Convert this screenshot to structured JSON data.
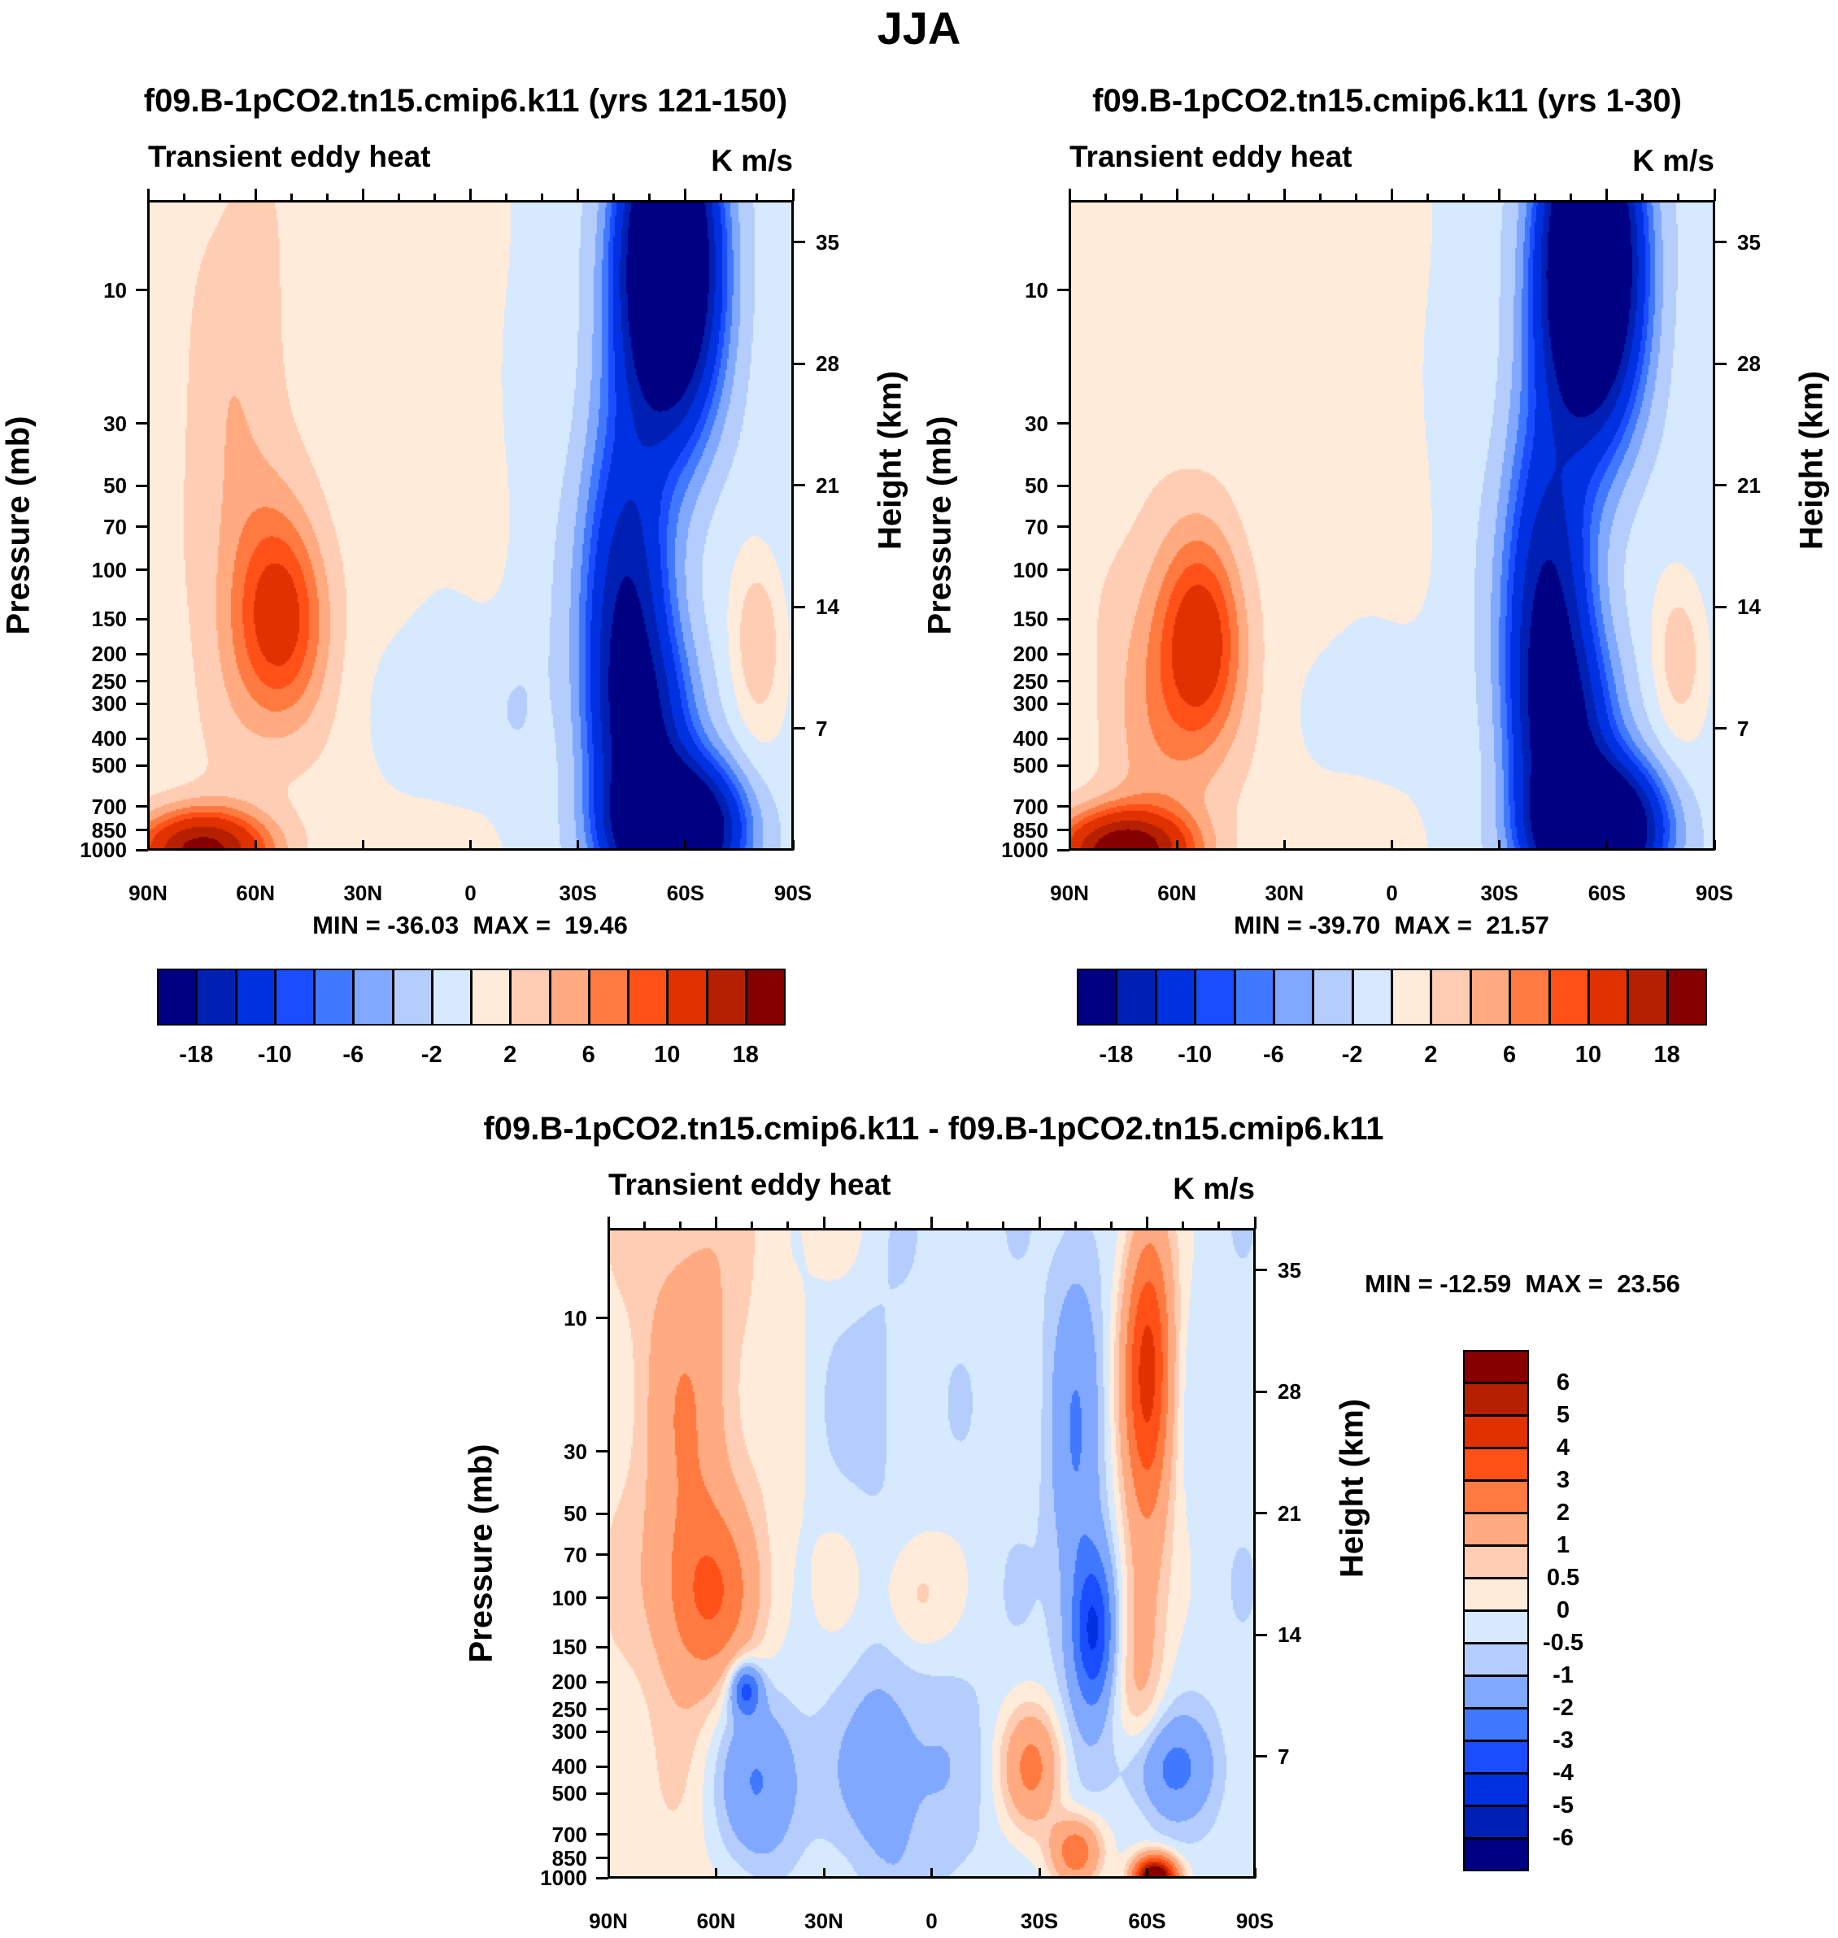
{
  "figure_title": "JJA",
  "chart_data": [
    {
      "type": "contour",
      "title": "f09.B-1pCO2.tn15.cmip6.k11 (yrs 121-150)",
      "left_string": "Transient eddy heat",
      "right_string": "K m/s",
      "ylabel": "Pressure (mb)",
      "ylabel_right": "Height (km)",
      "x_ticks": [
        "90N",
        "60N",
        "30N",
        "0",
        "30S",
        "60S",
        "90S"
      ],
      "x_range": [
        90,
        -90
      ],
      "y_ticks": [
        "10",
        "30",
        "50",
        "70",
        "100",
        "150",
        "200",
        "250",
        "300",
        "400",
        "500",
        "700",
        "850",
        "1000"
      ],
      "y_range_mb": [
        1000,
        4.8
      ],
      "y_scale": "log",
      "y_right_ticks": [
        "7",
        "14",
        "21",
        "28",
        "35"
      ],
      "stats": "MIN = -36.03  MAX =  19.46",
      "min": -36.03,
      "max": 19.46,
      "levels": [
        -18,
        -14,
        -10,
        -8,
        -6,
        -4,
        -2,
        0,
        2,
        4,
        6,
        8,
        10,
        14,
        18
      ],
      "colorbar_labels": [
        "-18",
        "-10",
        "-6",
        "-2",
        "2",
        "6",
        "10",
        "18"
      ],
      "colors": [
        "#000083",
        "#0020b4",
        "#0031e0",
        "#1a4dff",
        "#4078ff",
        "#80a8ff",
        "#b4cdfd",
        "#d7e9fe",
        "#ffebd9",
        "#ffcdb4",
        "#ffaa80",
        "#ff7a40",
        "#ff5018",
        "#e03200",
        "#b52000",
        "#870000"
      ],
      "background": {
        "amp": 1.0,
        "lat": -10
      },
      "features": [
        {
          "lat": -55,
          "p": 8,
          "amp": -38,
          "s_lat": 9,
          "s_lnp": 0.9
        },
        {
          "lat": -43,
          "p": 150,
          "amp": -17,
          "s_lat": 8,
          "s_lnp": 1.1
        },
        {
          "lat": -50,
          "p": 400,
          "amp": -12,
          "s_lat": 9,
          "s_lnp": 0.6
        },
        {
          "lat": -57,
          "p": 850,
          "amp": -36,
          "s_lat": 11,
          "s_lnp": 0.35
        },
        {
          "lat": 53,
          "p": 150,
          "amp": 10,
          "s_lat": 9,
          "s_lnp": 0.6
        },
        {
          "lat": 65,
          "p": 40,
          "amp": 3,
          "s_lat": 10,
          "s_lnp": 1.6
        },
        {
          "lat": 75,
          "p": 1000,
          "amp": 19,
          "s_lat": 12,
          "s_lnp": 0.22
        },
        {
          "lat": 5,
          "p": 300,
          "amp": -2.8,
          "s_lat": 16,
          "s_lnp": 0.6
        },
        {
          "lat": -80,
          "p": 180,
          "amp": 5,
          "s_lat": 5,
          "s_lnp": 0.5
        }
      ]
    },
    {
      "type": "contour",
      "title": "f09.B-1pCO2.tn15.cmip6.k11 (yrs 1-30)",
      "left_string": "Transient eddy heat",
      "right_string": "K m/s",
      "ylabel": "Pressure (mb)",
      "ylabel_right": "Height (km)",
      "x_ticks": [
        "90N",
        "60N",
        "30N",
        "0",
        "30S",
        "60S",
        "90S"
      ],
      "x_range": [
        90,
        -90
      ],
      "y_ticks": [
        "10",
        "30",
        "50",
        "70",
        "100",
        "150",
        "200",
        "250",
        "300",
        "400",
        "500",
        "700",
        "850",
        "1000"
      ],
      "y_range_mb": [
        1000,
        4.8
      ],
      "y_scale": "log",
      "y_right_ticks": [
        "7",
        "14",
        "21",
        "28",
        "35"
      ],
      "stats": "MIN = -39.70  MAX =  21.57",
      "min": -39.7,
      "max": 21.57,
      "levels": [
        -18,
        -14,
        -10,
        -8,
        -6,
        -4,
        -2,
        0,
        2,
        4,
        6,
        8,
        10,
        14,
        18
      ],
      "colorbar_labels": [
        "-18",
        "-10",
        "-6",
        "-2",
        "2",
        "6",
        "10",
        "18"
      ],
      "colors": [
        "#000083",
        "#0020b4",
        "#0031e0",
        "#1a4dff",
        "#4078ff",
        "#80a8ff",
        "#b4cdfd",
        "#d7e9fe",
        "#ffebd9",
        "#ffcdb4",
        "#ffaa80",
        "#ff7a40",
        "#ff5018",
        "#e03200",
        "#b52000",
        "#870000"
      ],
      "background": {
        "amp": 1.0,
        "lat": -10
      },
      "features": [
        {
          "lat": -55,
          "p": 8,
          "amp": -40,
          "s_lat": 9,
          "s_lnp": 0.9
        },
        {
          "lat": -43,
          "p": 150,
          "amp": -18,
          "s_lat": 8,
          "s_lnp": 1.1
        },
        {
          "lat": -50,
          "p": 400,
          "amp": -13,
          "s_lat": 9,
          "s_lnp": 0.6
        },
        {
          "lat": -57,
          "p": 850,
          "amp": -38,
          "s_lat": 11,
          "s_lnp": 0.35
        },
        {
          "lat": 53,
          "p": 180,
          "amp": 10,
          "s_lat": 8,
          "s_lnp": 0.6
        },
        {
          "lat": 65,
          "p": 300,
          "amp": 4,
          "s_lat": 11,
          "s_lnp": 1.0
        },
        {
          "lat": 75,
          "p": 1000,
          "amp": 21,
          "s_lat": 12,
          "s_lnp": 0.22
        },
        {
          "lat": 5,
          "p": 300,
          "amp": -2.5,
          "s_lat": 14,
          "s_lnp": 0.5
        },
        {
          "lat": -80,
          "p": 200,
          "amp": 4.5,
          "s_lat": 5,
          "s_lnp": 0.45
        }
      ]
    },
    {
      "type": "contour",
      "title": "f09.B-1pCO2.tn15.cmip6.k11 - f09.B-1pCO2.tn15.cmip6.k11",
      "left_string": "Transient eddy heat",
      "right_string": "K m/s",
      "ylabel": "Pressure (mb)",
      "ylabel_right": "Height (km)",
      "x_ticks": [
        "90N",
        "60N",
        "30N",
        "0",
        "30S",
        "60S",
        "90S"
      ],
      "x_range": [
        90,
        -90
      ],
      "y_ticks": [
        "10",
        "30",
        "50",
        "70",
        "100",
        "150",
        "200",
        "250",
        "300",
        "400",
        "500",
        "700",
        "850",
        "1000"
      ],
      "y_range_mb": [
        1000,
        4.8
      ],
      "y_scale": "log",
      "y_right_ticks": [
        "7",
        "14",
        "21",
        "28",
        "35"
      ],
      "stats": "MIN = -12.59  MAX =  23.56",
      "min": -12.59,
      "max": 23.56,
      "levels": [
        -6,
        -5,
        -4,
        -3,
        -2,
        -1,
        -0.5,
        0,
        0.5,
        1,
        2,
        3,
        4,
        5,
        6
      ],
      "colorbar_labels": [
        "-6",
        "-5",
        "-4",
        "-3",
        "-2",
        "-1",
        "-0.5",
        "0",
        "0.5",
        "1",
        "2",
        "3",
        "4",
        "5",
        "6"
      ],
      "colors": [
        "#000083",
        "#0020b4",
        "#0031e0",
        "#1a4dff",
        "#4078ff",
        "#80a8ff",
        "#b4cdfd",
        "#d7e9fe",
        "#ffebd9",
        "#ffcdb4",
        "#ffaa80",
        "#ff7a40",
        "#ff5018",
        "#e03200",
        "#b52000",
        "#870000"
      ],
      "background": {
        "amp": 0.3,
        "lat": 20
      },
      "features": [
        {
          "lat": 68,
          "p": 25,
          "amp": 1.6,
          "s_lat": 9,
          "s_lnp": 1.3
        },
        {
          "lat": 62,
          "p": 100,
          "amp": 2.2,
          "s_lat": 9,
          "s_lnp": 0.5
        },
        {
          "lat": 5,
          "p": 100,
          "amp": 1.2,
          "s_lat": 7,
          "s_lnp": 0.4
        },
        {
          "lat": -60,
          "p": 15,
          "amp": 4.6,
          "s_lat": 5,
          "s_lnp": 0.9
        },
        {
          "lat": -58,
          "p": 150,
          "amp": 1.5,
          "s_lat": 5,
          "s_lnp": 0.8
        },
        {
          "lat": -40,
          "p": 30,
          "amp": -1.6,
          "s_lat": 5,
          "s_lnp": 1.2
        },
        {
          "lat": -45,
          "p": 130,
          "amp": -3.6,
          "s_lat": 4,
          "s_lnp": 0.45
        },
        {
          "lat": -28,
          "p": 400,
          "amp": 2.5,
          "s_lat": 6,
          "s_lnp": 0.35
        },
        {
          "lat": -40,
          "p": 800,
          "amp": 3.0,
          "s_lat": 5,
          "s_lnp": 0.2
        },
        {
          "lat": -65,
          "p": 400,
          "amp": -2.0,
          "s_lat": 9,
          "s_lnp": 0.3
        },
        {
          "lat": -62,
          "p": 1000,
          "amp": 9,
          "s_lat": 4,
          "s_lnp": 0.12
        },
        {
          "lat": 48,
          "p": 450,
          "amp": -2.2,
          "s_lat": 9,
          "s_lnp": 0.55
        },
        {
          "lat": 52,
          "p": 210,
          "amp": -3.2,
          "s_lat": 3,
          "s_lnp": 0.15
        },
        {
          "lat": 15,
          "p": 400,
          "amp": -1.2,
          "s_lat": 15,
          "s_lnp": 0.8
        },
        {
          "lat": 25,
          "p": 20,
          "amp": -0.8,
          "s_lat": 10,
          "s_lnp": 0.8
        }
      ]
    }
  ]
}
